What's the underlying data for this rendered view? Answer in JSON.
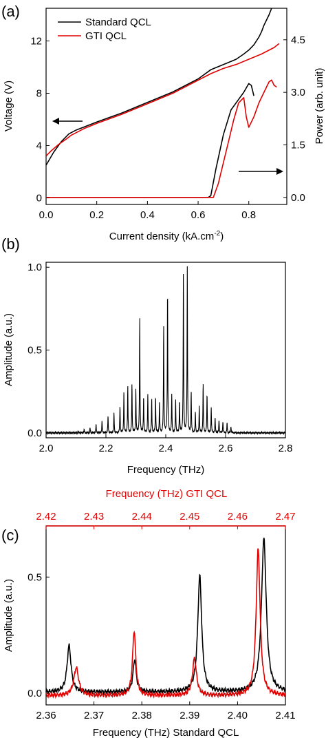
{
  "chart_data": [
    {
      "panel_label": "(a)",
      "type": "line",
      "xlabel": "Current density (kA.cm",
      "xlabel_sup": "-2",
      "xlabel_end": ")",
      "xlim": [
        0.0,
        0.95
      ],
      "xticks": [
        "0.0",
        "0.2",
        "0.4",
        "0.6",
        "0.8"
      ],
      "ylabel": "Voltage (V)",
      "ylim": [
        -0.5,
        14.5
      ],
      "yticks": [
        "0",
        "4",
        "8",
        "12"
      ],
      "ylabel_right": "Power (arb. unit)",
      "ylim_right": [
        -0.2,
        5.4
      ],
      "yticks_right": [
        "0.0",
        "1.5",
        "3.0",
        "4.5"
      ],
      "legend": [
        "Standard QCL",
        "GTI QCL"
      ],
      "legend_position": "top-left",
      "colors": {
        "standard": "#000000",
        "gti": "#e00000"
      },
      "series": [
        {
          "name": "Standard QCL",
          "axis": "left",
          "kind": "voltage",
          "x": [
            0.0,
            0.03,
            0.06,
            0.09,
            0.12,
            0.2,
            0.3,
            0.4,
            0.5,
            0.6,
            0.65,
            0.7,
            0.75,
            0.78,
            0.8,
            0.82,
            0.83,
            0.84,
            0.85,
            0.86,
            0.87,
            0.88,
            0.89
          ],
          "y": [
            2.5,
            3.5,
            4.3,
            4.9,
            5.2,
            5.8,
            6.5,
            7.3,
            8.1,
            9.1,
            9.8,
            10.2,
            10.6,
            11.0,
            11.3,
            11.7,
            12.0,
            12.3,
            12.7,
            13.2,
            13.6,
            14.0,
            14.5
          ]
        },
        {
          "name": "GTI QCL",
          "axis": "left",
          "kind": "voltage",
          "x": [
            0.0,
            0.02,
            0.05,
            0.08,
            0.1,
            0.15,
            0.2,
            0.3,
            0.4,
            0.5,
            0.6,
            0.65,
            0.7,
            0.75,
            0.8,
            0.85,
            0.9,
            0.92
          ],
          "y": [
            3.2,
            3.6,
            4.1,
            4.5,
            4.8,
            5.3,
            5.7,
            6.4,
            7.2,
            8.0,
            9.0,
            9.5,
            9.9,
            10.2,
            10.6,
            11.0,
            11.5,
            11.8
          ]
        },
        {
          "name": "Standard QCL",
          "axis": "right",
          "kind": "power",
          "x": [
            0.0,
            0.64,
            0.65,
            0.67,
            0.7,
            0.73,
            0.76,
            0.78,
            0.8,
            0.81,
            0.82
          ],
          "y": [
            0.0,
            0.0,
            0.05,
            0.8,
            1.8,
            2.5,
            2.8,
            3.0,
            3.25,
            3.2,
            2.9
          ]
        },
        {
          "name": "GTI QCL",
          "axis": "right",
          "kind": "power",
          "x": [
            0.0,
            0.66,
            0.68,
            0.7,
            0.72,
            0.74,
            0.76,
            0.78,
            0.79,
            0.8,
            0.82,
            0.84,
            0.86,
            0.88,
            0.89,
            0.9,
            0.91
          ],
          "y": [
            0.0,
            0.0,
            0.4,
            1.0,
            1.6,
            2.2,
            2.7,
            2.85,
            2.3,
            2.0,
            2.3,
            2.7,
            3.0,
            3.3,
            3.35,
            3.2,
            3.15
          ]
        }
      ],
      "annotations": [
        {
          "type": "arrow",
          "direction": "left",
          "points_to": "Voltage (V)"
        },
        {
          "type": "arrow",
          "direction": "right",
          "points_to": "Power (arb. unit)"
        }
      ]
    },
    {
      "panel_label": "(b)",
      "type": "line",
      "xlabel": "Frequency (THz)",
      "ylabel": "Amplitude (a.u.)",
      "xlim": [
        2.0,
        2.8
      ],
      "ylim": [
        -0.03,
        1.03
      ],
      "xticks": [
        "2.0",
        "2.2",
        "2.4",
        "2.6",
        "2.8"
      ],
      "yticks": [
        "0.0",
        "0.5",
        "1.0"
      ],
      "peaks": {
        "x": [
          2.107,
          2.127,
          2.147,
          2.167,
          2.187,
          2.207,
          2.227,
          2.247,
          2.26,
          2.273,
          2.287,
          2.3,
          2.313,
          2.326,
          2.34,
          2.353,
          2.366,
          2.379,
          2.393,
          2.406,
          2.42,
          2.433,
          2.446,
          2.459,
          2.472,
          2.485,
          2.499,
          2.512,
          2.525,
          2.538,
          2.552,
          2.565,
          2.578,
          2.591,
          2.605,
          2.618
        ],
        "y": [
          0.01,
          0.02,
          0.03,
          0.05,
          0.07,
          0.1,
          0.12,
          0.16,
          0.24,
          0.28,
          0.3,
          0.26,
          0.7,
          0.22,
          0.23,
          0.2,
          0.22,
          0.18,
          0.65,
          0.88,
          0.23,
          0.2,
          0.19,
          0.97,
          1.0,
          0.25,
          0.12,
          0.16,
          0.3,
          0.24,
          0.15,
          0.09,
          0.08,
          0.07,
          0.06,
          0.04
        ]
      }
    },
    {
      "panel_label": "(c)",
      "type": "line",
      "xlabel": "Frequency (THz) Standard QCL",
      "xlabel_top": "Frequency (THz) GTI QCL",
      "ylabel": "Amplitude (a.u.)",
      "xlim": [
        2.36,
        2.41
      ],
      "xlim_top": [
        2.42,
        2.47
      ],
      "ylim": [
        -0.05,
        0.72
      ],
      "xticks": [
        "2.36",
        "2.37",
        "2.38",
        "2.39",
        "2.40",
        "2.41"
      ],
      "xticks_top": [
        "2.42",
        "2.43",
        "2.44",
        "2.45",
        "2.46",
        "2.47"
      ],
      "yticks": [
        "0.0",
        "0.5"
      ],
      "colors": {
        "standard": "#000000",
        "gti": "#e00000"
      },
      "series": [
        {
          "name": "Standard QCL",
          "axis": "bottom",
          "baseline": 0.005,
          "peaks": [
            {
              "x": 2.3648,
              "amp": 0.2,
              "width": 0.0005
            },
            {
              "x": 2.3785,
              "amp": 0.14,
              "width": 0.0004
            },
            {
              "x": 2.3921,
              "amp": 0.5,
              "width": 0.0005
            },
            {
              "x": 2.4055,
              "amp": 0.66,
              "width": 0.0006
            }
          ]
        },
        {
          "name": "GTI QCL",
          "axis": "top",
          "baseline": -0.01,
          "peaks": [
            {
              "x": 2.4263,
              "amp": 0.12,
              "width": 0.0006
            },
            {
              "x": 2.4384,
              "amp": 0.28,
              "width": 0.0004
            },
            {
              "x": 2.451,
              "amp": 0.16,
              "width": 0.0005
            },
            {
              "x": 2.4643,
              "amp": 0.63,
              "width": 0.0005
            }
          ]
        }
      ]
    }
  ]
}
